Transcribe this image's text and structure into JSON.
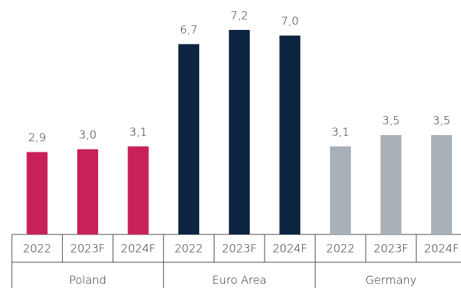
{
  "chart_data": {
    "type": "bar",
    "groups": [
      {
        "name": "Poland",
        "color": "#c8205a",
        "categories": [
          "2022",
          "2023F",
          "2024F"
        ],
        "values": [
          2.9,
          3.0,
          3.1
        ],
        "value_labels": [
          "2,9",
          "3,0",
          "3,1"
        ]
      },
      {
        "name": "Euro Area",
        "color": "#0d2440",
        "categories": [
          "2022",
          "2023F",
          "2024F"
        ],
        "values": [
          6.7,
          7.2,
          7.0
        ],
        "value_labels": [
          "6,7",
          "7,2",
          "7,0"
        ]
      },
      {
        "name": "Germany",
        "color": "#a8b0b8",
        "categories": [
          "2022",
          "2023F",
          "2024F"
        ],
        "values": [
          3.1,
          3.5,
          3.5
        ],
        "value_labels": [
          "3,1",
          "3,5",
          "3,5"
        ]
      }
    ]
  }
}
